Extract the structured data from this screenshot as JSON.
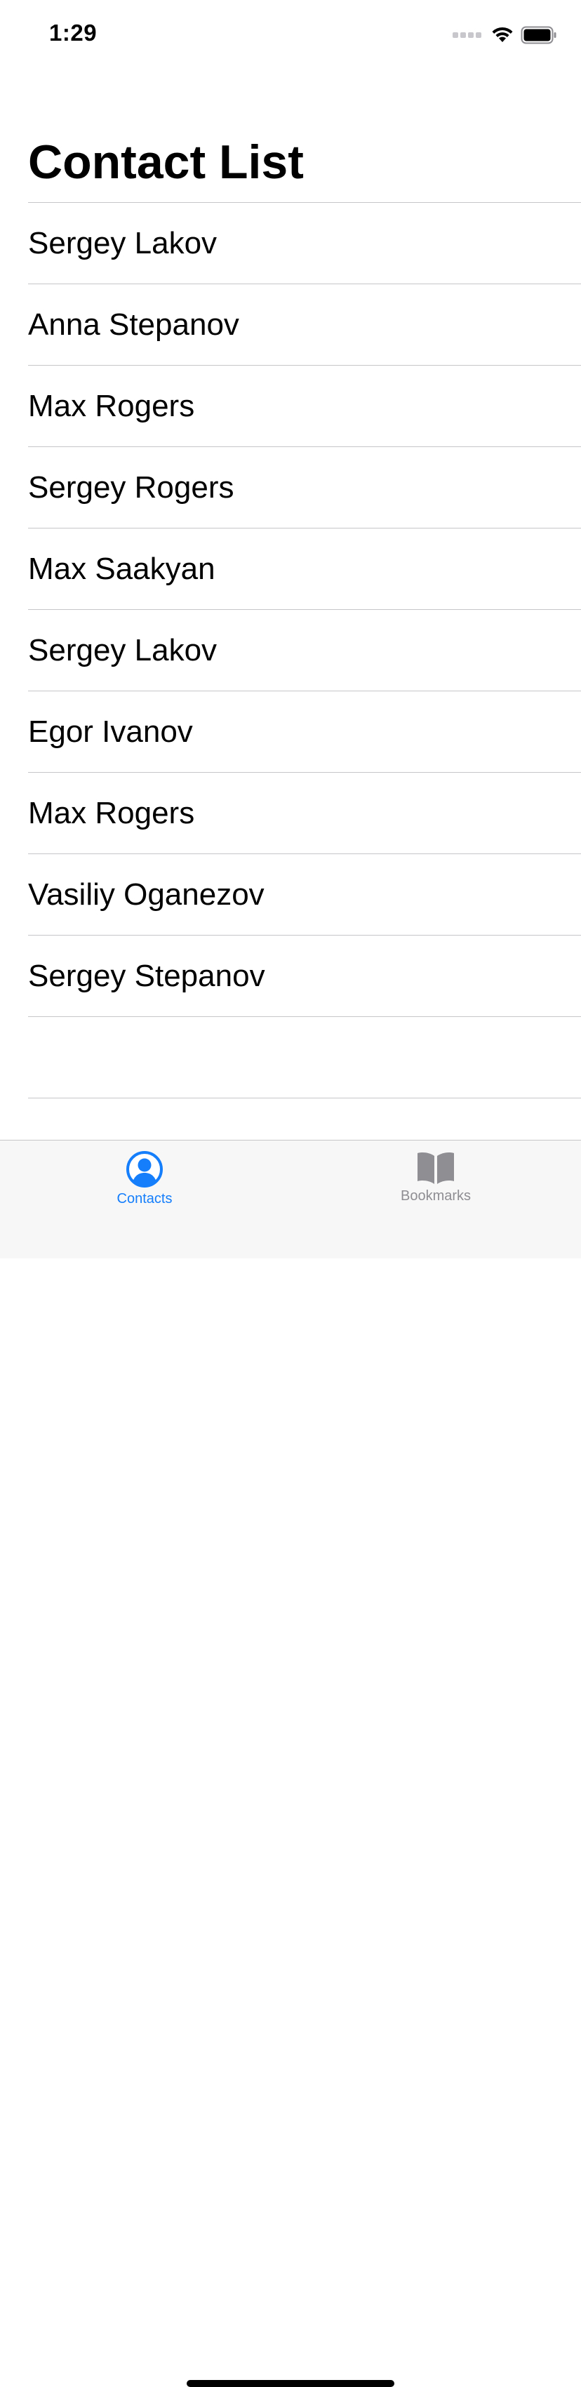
{
  "status_bar": {
    "time": "1:29"
  },
  "navigation": {
    "title": "Contact List"
  },
  "contacts": [
    "Sergey Lakov",
    "Anna Stepanov",
    "Max Rogers",
    "Sergey Rogers",
    "Max Saakyan",
    "Sergey Lakov",
    "Egor Ivanov",
    "Max Rogers",
    "Vasiliy Oganezov",
    "Sergey Stepanov"
  ],
  "tab_bar": {
    "tabs": [
      {
        "label": "Contacts",
        "icon": "person-circle-icon",
        "selected": true
      },
      {
        "label": "Bookmarks",
        "icon": "book-icon",
        "selected": false
      }
    ]
  },
  "colors": {
    "accent": "#147efb",
    "inactive": "#8e8e93",
    "separator": "#c6c6c8",
    "tab_bar_background": "#f7f7f7"
  }
}
